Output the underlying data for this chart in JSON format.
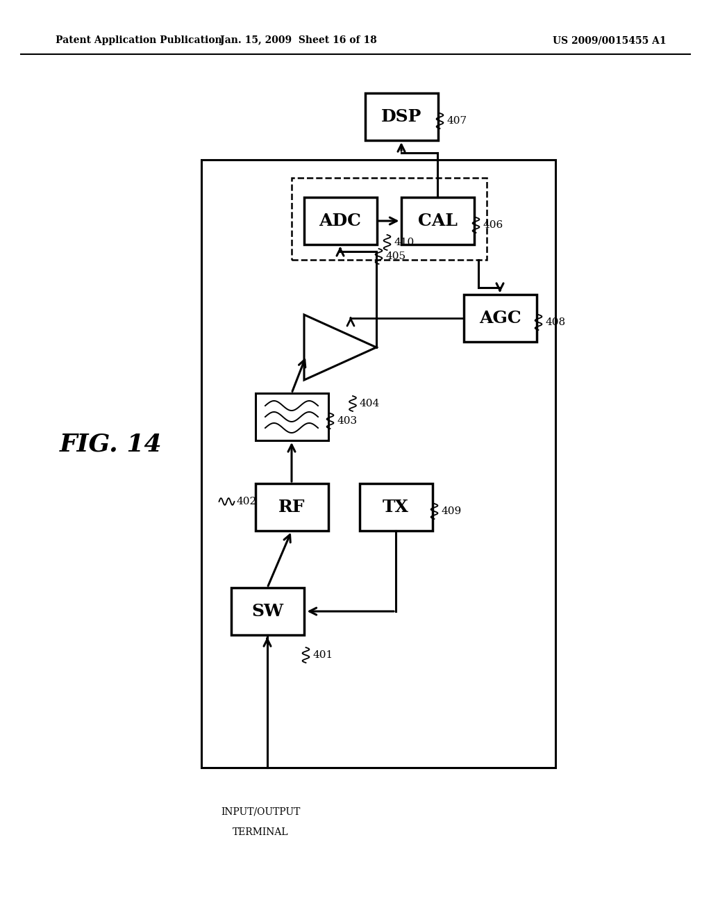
{
  "header_left": "Patent Application Publication",
  "header_center": "Jan. 15, 2009  Sheet 16 of 18",
  "header_right": "US 2009/0015455 A1",
  "fig_label": "FIG. 14",
  "background": "#ffffff"
}
